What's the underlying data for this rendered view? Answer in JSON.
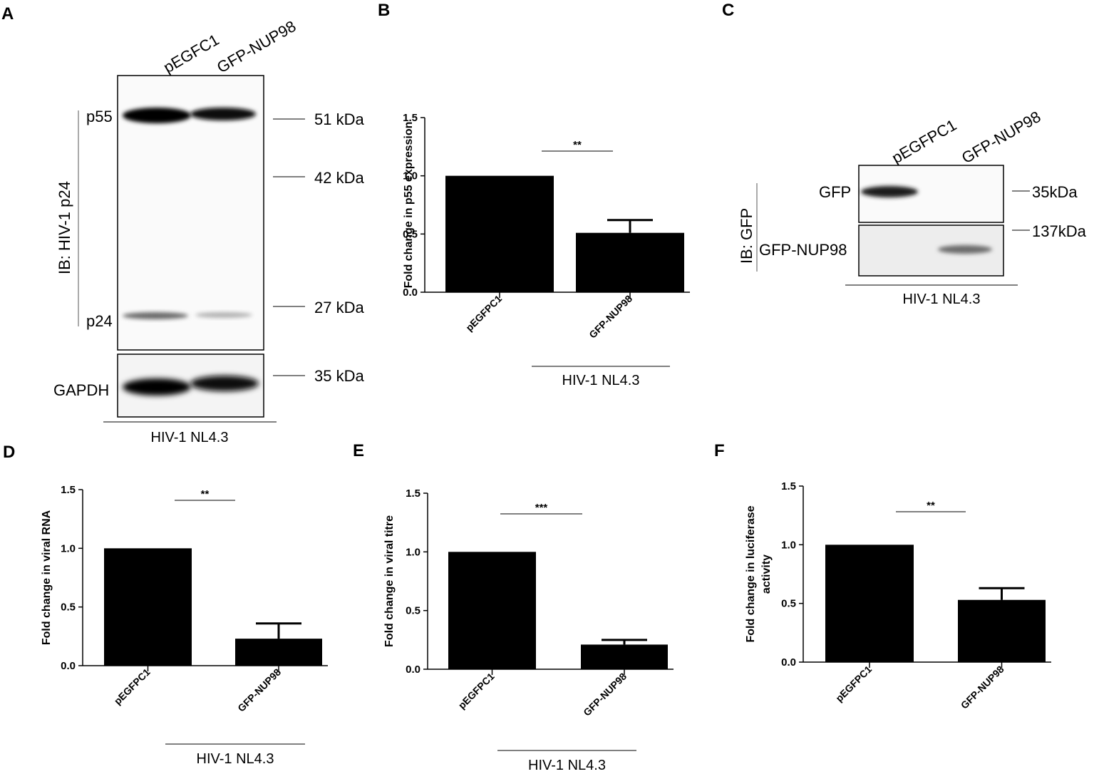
{
  "panels": {
    "A": {
      "letter": "A",
      "lanes": [
        "pEGFC1",
        "GFP-NUP98"
      ],
      "ib_label": "IB: HIV-1 p24",
      "bands": [
        "p55",
        "p24"
      ],
      "loading_label": "GAPDH",
      "markers": [
        "51 kDa",
        "42 kDa",
        "27 kDa",
        "35 kDa"
      ],
      "group_label": "HIV-1 NL4.3"
    },
    "B": {
      "letter": "B"
    },
    "C": {
      "letter": "C",
      "lanes": [
        "pEGFPC1",
        "GFP-NUP98"
      ],
      "ib_label": "IB: GFP",
      "bands": [
        "GFP",
        "GFP-NUP98"
      ],
      "markers": [
        "35kDa",
        "137kDa"
      ],
      "group_label": "HIV-1 NL4.3"
    },
    "D": {
      "letter": "D"
    },
    "E": {
      "letter": "E"
    },
    "F": {
      "letter": "F"
    }
  },
  "chart_data": [
    {
      "panel": "B",
      "type": "bar",
      "categories": [
        "pEGFPC1",
        "GFP-NUP98"
      ],
      "values": [
        1.0,
        0.51
      ],
      "errors": [
        0,
        0.11
      ],
      "ylabel": "Fold change in p55 expression",
      "ylim": [
        0,
        1.5
      ],
      "yticks": [
        "0.0",
        "0.5",
        "1.0",
        "1.5"
      ],
      "significance": "**",
      "group_label": "HIV-1 NL4.3",
      "bar_color": "#000000"
    },
    {
      "panel": "D",
      "type": "bar",
      "categories": [
        "pEGFPC1",
        "GFP-NUP98"
      ],
      "values": [
        1.0,
        0.23
      ],
      "errors": [
        0,
        0.13
      ],
      "ylabel": "Fold change in viral RNA",
      "ylim": [
        0,
        1.5
      ],
      "yticks": [
        "0.0",
        "0.5",
        "1.0",
        "1.5"
      ],
      "significance": "**",
      "group_label": "HIV-1 NL4.3",
      "bar_color": "#000000"
    },
    {
      "panel": "E",
      "type": "bar",
      "categories": [
        "pEGFPC1",
        "GFP-NUP98"
      ],
      "values": [
        1.0,
        0.21
      ],
      "errors": [
        0,
        0.04
      ],
      "ylabel": "Fold change in viral titre",
      "ylim": [
        0,
        1.5
      ],
      "yticks": [
        "0.0",
        "0.5",
        "1.0",
        "1.5"
      ],
      "significance": "***",
      "group_label": "HIV-1 NL4.3",
      "bar_color": "#000000"
    },
    {
      "panel": "F",
      "type": "bar",
      "categories": [
        "pEGFPC1",
        "GFP-NUP98"
      ],
      "values": [
        1.0,
        0.53
      ],
      "errors": [
        0,
        0.1
      ],
      "ylabel_lines": [
        "Fold change in luciferase",
        "activity"
      ],
      "ylim": [
        0,
        1.5
      ],
      "yticks": [
        "0.0",
        "0.5",
        "1.0",
        "1.5"
      ],
      "significance": "**",
      "bar_color": "#000000"
    }
  ]
}
